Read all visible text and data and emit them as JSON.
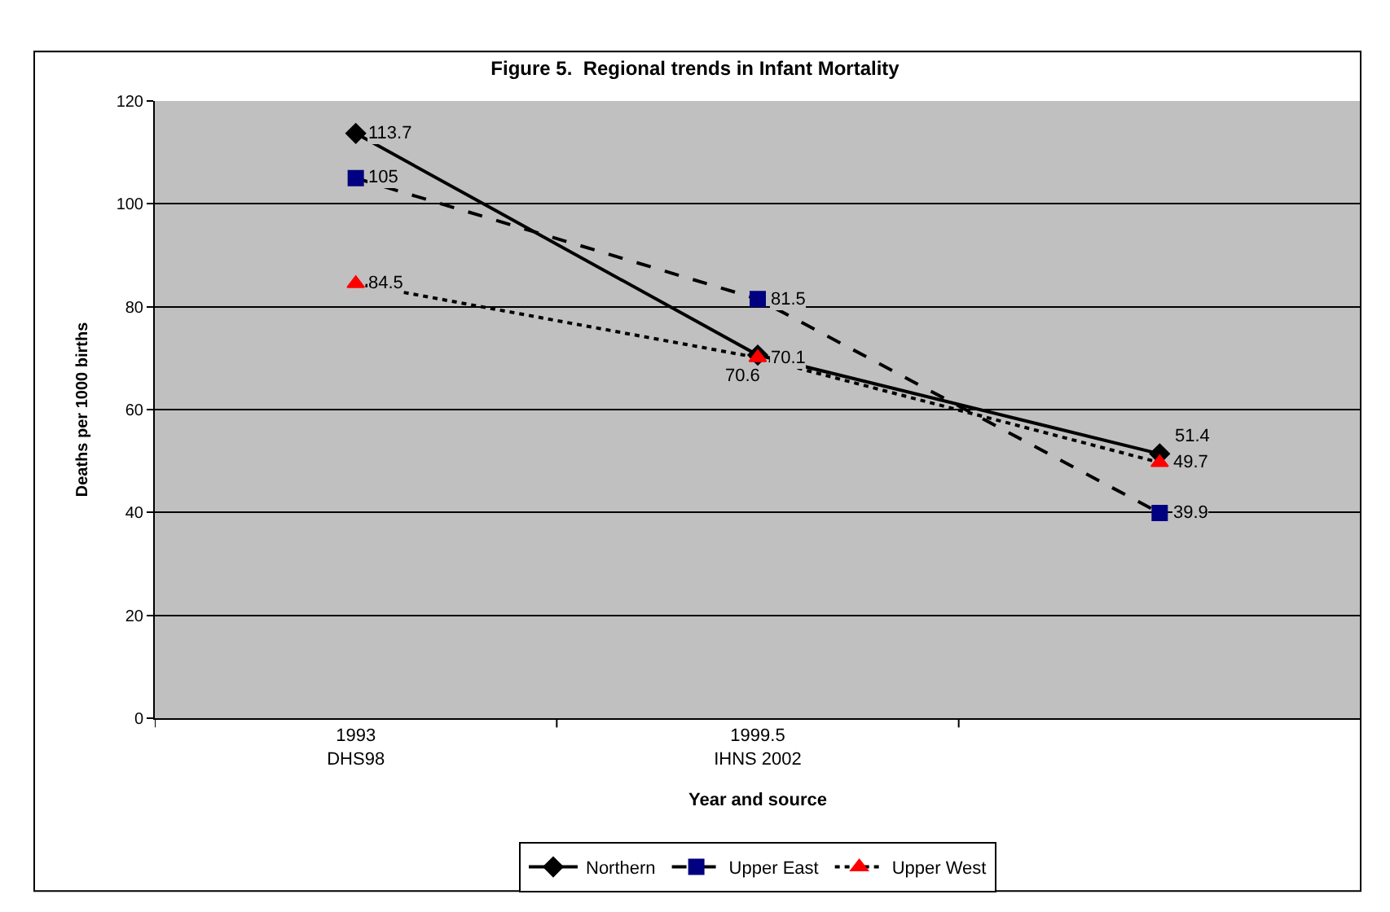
{
  "chart_data": {
    "type": "line",
    "title": "Figure 5.  Regional trends in Infant Mortality",
    "xlabel": "Year and source",
    "ylabel": "Deaths per 1000 births",
    "categories": [
      "1993\nDHS98",
      "1999.5\nIHNS 2002",
      null
    ],
    "series": [
      {
        "name": "Northern",
        "color": "#000000",
        "marker": "diamond",
        "line_style": "solid",
        "values": [
          113.7,
          70.6,
          51.4
        ]
      },
      {
        "name": "Upper East",
        "color": "#000080",
        "marker": "square",
        "line_style": "dashed",
        "values": [
          105,
          81.5,
          39.9
        ]
      },
      {
        "name": "Upper West",
        "color": "#ff0000",
        "marker": "triangle",
        "line_style": "dotted",
        "values": [
          84.5,
          70.1,
          49.7
        ]
      }
    ],
    "ylim": [
      0,
      120
    ],
    "yticks": [
      0,
      20,
      40,
      60,
      80,
      100,
      120
    ],
    "grid": "y",
    "legend": "bottom",
    "data_labels": true
  }
}
